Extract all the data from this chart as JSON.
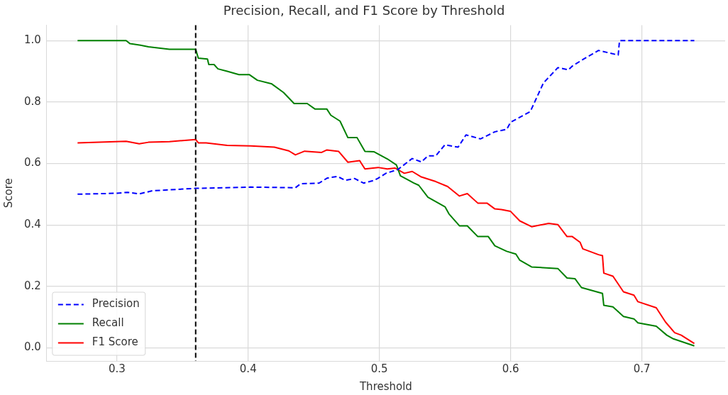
{
  "chart_data": {
    "type": "line",
    "title": "Precision, Recall, and F1 Score by Threshold",
    "xlabel": "Threshold",
    "ylabel": "Score",
    "xlim": [
      0.2465,
      0.7635
    ],
    "xticks": [
      0.3,
      0.4,
      0.5,
      0.6,
      0.7
    ],
    "ylim": [
      -0.043,
      1.05
    ],
    "yticks": [
      {
        "value": 0,
        "label": "0.0"
      },
      0.2,
      0.4,
      0.6,
      0.8,
      {
        "value": 1,
        "label": "1.0"
      }
    ],
    "grid": true,
    "legend": "bottom left",
    "marker": "none",
    "ref_lines": [
      {
        "axis": "x",
        "value": 0.36,
        "color": "#000000",
        "line_style": "dashed"
      }
    ],
    "series": [
      {
        "name": "Precision",
        "color": "#0000ff",
        "line_style": "dashed",
        "x": [
          0.27,
          0.3,
          0.308,
          0.317,
          0.327,
          0.36,
          0.402,
          0.436,
          0.44,
          0.454,
          0.46,
          0.468,
          0.474,
          0.481,
          0.488,
          0.496,
          0.499,
          0.505,
          0.514,
          0.525,
          0.532,
          0.537,
          0.543,
          0.55,
          0.56,
          0.566,
          0.577,
          0.588,
          0.597,
          0.6,
          0.615,
          0.625,
          0.636,
          0.644,
          0.647,
          0.656,
          0.667,
          0.682,
          0.683,
          0.74
        ],
        "values": [
          0.5,
          0.503,
          0.506,
          0.501,
          0.511,
          0.519,
          0.523,
          0.521,
          0.534,
          0.536,
          0.552,
          0.558,
          0.545,
          0.551,
          0.536,
          0.545,
          0.552,
          0.568,
          0.58,
          0.616,
          0.605,
          0.625,
          0.625,
          0.661,
          0.653,
          0.693,
          0.68,
          0.703,
          0.711,
          0.734,
          0.769,
          0.862,
          0.912,
          0.905,
          0.917,
          0.941,
          0.968,
          0.953,
          1.0,
          1.0
        ]
      },
      {
        "name": "Recall",
        "color": "#008000",
        "line_style": "solid",
        "x": [
          0.27,
          0.307,
          0.31,
          0.318,
          0.324,
          0.34,
          0.36,
          0.362,
          0.369,
          0.37,
          0.374,
          0.377,
          0.384,
          0.393,
          0.401,
          0.407,
          0.418,
          0.427,
          0.435,
          0.445,
          0.451,
          0.46,
          0.463,
          0.47,
          0.476,
          0.483,
          0.489,
          0.496,
          0.506,
          0.513,
          0.516,
          0.526,
          0.53,
          0.537,
          0.55,
          0.553,
          0.561,
          0.567,
          0.575,
          0.583,
          0.588,
          0.597,
          0.604,
          0.607,
          0.616,
          0.636,
          0.643,
          0.649,
          0.654,
          0.67,
          0.671,
          0.678,
          0.686,
          0.694,
          0.697,
          0.711,
          0.719,
          0.724,
          0.74
        ],
        "values": [
          1.0,
          1.0,
          0.99,
          0.985,
          0.98,
          0.972,
          0.972,
          0.943,
          0.94,
          0.922,
          0.922,
          0.908,
          0.9,
          0.889,
          0.889,
          0.871,
          0.859,
          0.831,
          0.795,
          0.795,
          0.777,
          0.777,
          0.757,
          0.738,
          0.684,
          0.684,
          0.639,
          0.638,
          0.615,
          0.595,
          0.56,
          0.537,
          0.529,
          0.49,
          0.459,
          0.436,
          0.397,
          0.397,
          0.362,
          0.362,
          0.332,
          0.314,
          0.305,
          0.285,
          0.263,
          0.258,
          0.227,
          0.225,
          0.196,
          0.177,
          0.138,
          0.133,
          0.102,
          0.094,
          0.081,
          0.07,
          0.041,
          0.029,
          0.006
        ]
      },
      {
        "name": "F1 Score",
        "color": "#ff0000",
        "line_style": "solid",
        "x": [
          0.27,
          0.307,
          0.317,
          0.324,
          0.34,
          0.36,
          0.362,
          0.368,
          0.384,
          0.402,
          0.42,
          0.431,
          0.436,
          0.443,
          0.456,
          0.46,
          0.469,
          0.476,
          0.485,
          0.489,
          0.499,
          0.506,
          0.512,
          0.519,
          0.525,
          0.532,
          0.543,
          0.552,
          0.561,
          0.567,
          0.575,
          0.582,
          0.588,
          0.593,
          0.6,
          0.607,
          0.616,
          0.629,
          0.636,
          0.643,
          0.647,
          0.653,
          0.655,
          0.667,
          0.67,
          0.671,
          0.678,
          0.686,
          0.694,
          0.697,
          0.711,
          0.718,
          0.725,
          0.73,
          0.74
        ],
        "values": [
          0.667,
          0.672,
          0.664,
          0.669,
          0.671,
          0.678,
          0.667,
          0.667,
          0.659,
          0.657,
          0.653,
          0.641,
          0.628,
          0.64,
          0.636,
          0.644,
          0.639,
          0.604,
          0.609,
          0.582,
          0.587,
          0.582,
          0.585,
          0.568,
          0.574,
          0.556,
          0.541,
          0.525,
          0.494,
          0.502,
          0.471,
          0.471,
          0.452,
          0.45,
          0.444,
          0.413,
          0.394,
          0.405,
          0.401,
          0.362,
          0.362,
          0.343,
          0.322,
          0.303,
          0.3,
          0.243,
          0.233,
          0.182,
          0.171,
          0.15,
          0.13,
          0.084,
          0.049,
          0.041,
          0.014
        ]
      }
    ]
  }
}
